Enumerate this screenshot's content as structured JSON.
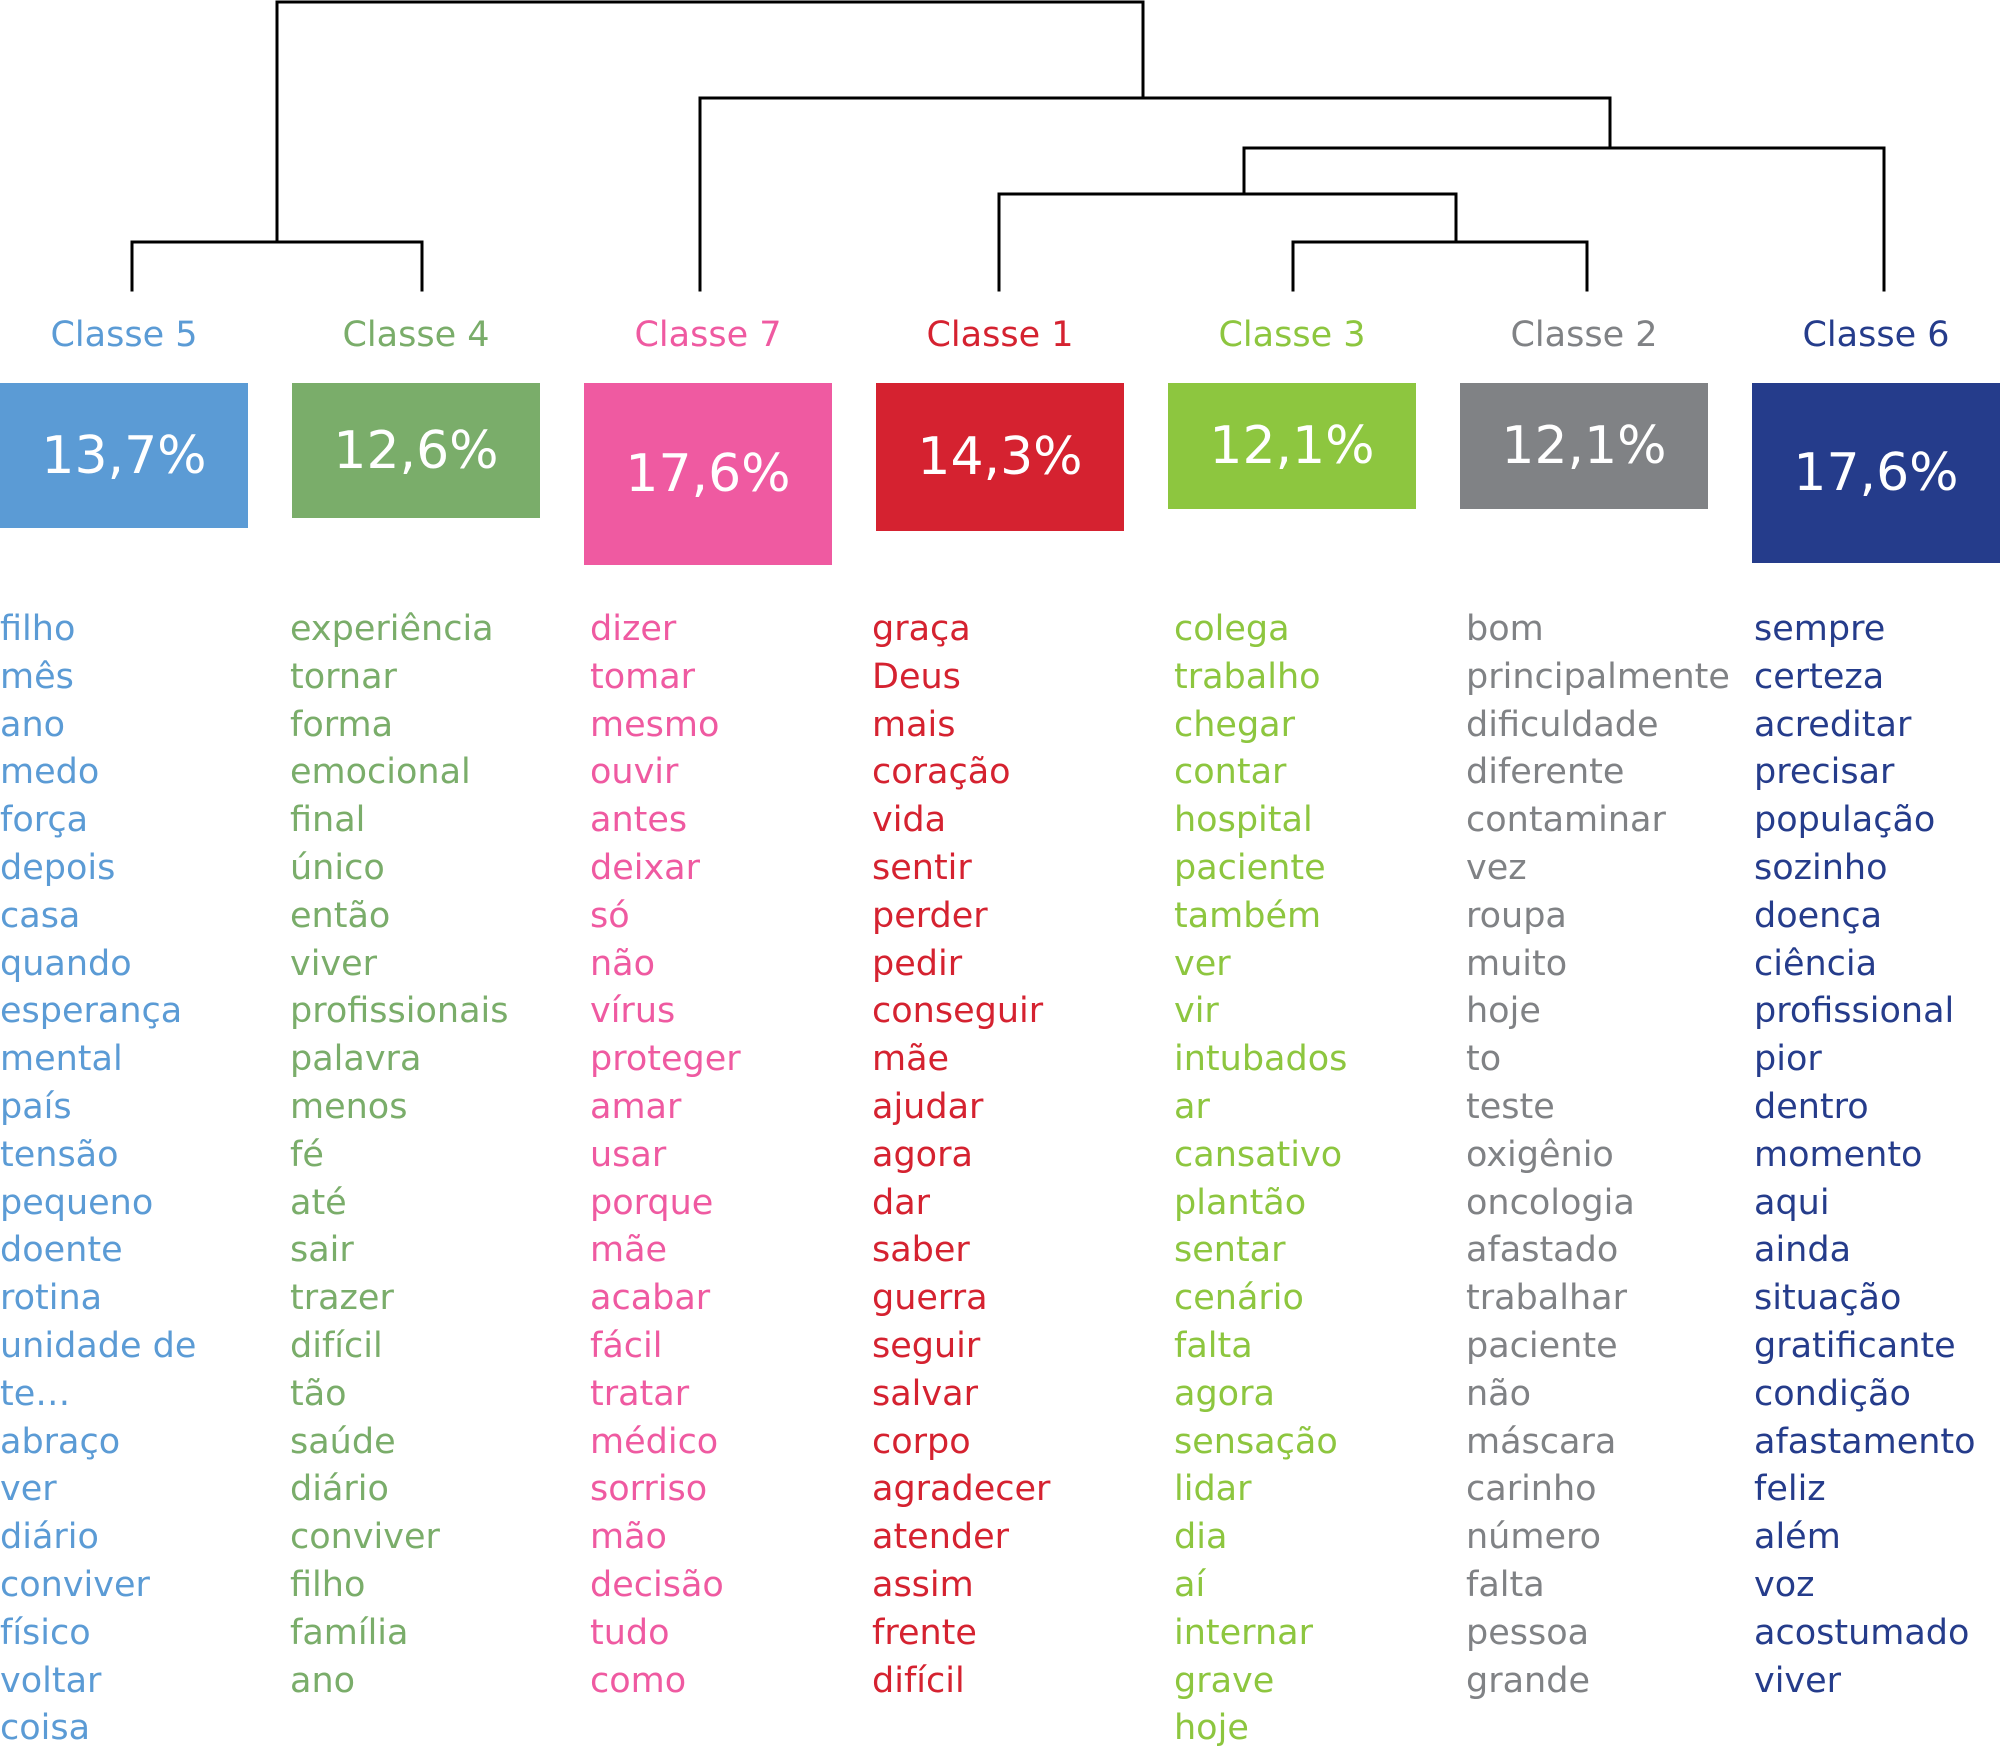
{
  "colors": {
    "classe5": "#5b9bd5",
    "classe4": "#7aad6a",
    "classe7": "#ef5aa1",
    "classe1": "#d52230",
    "classe3": "#8dc63f",
    "classe2": "#808285",
    "classe6": "#253c8b",
    "dendrogram": "#000000"
  },
  "classes": [
    {
      "key": "classe5",
      "label": "Classe 5",
      "percent": "13,7%",
      "words": [
        "filho",
        "mês",
        "ano",
        "medo",
        "força",
        "depois",
        "casa",
        "quando",
        "esperança",
        "mental",
        "país",
        "tensão",
        "pequeno",
        "doente",
        "rotina",
        "unidade de",
        "te…",
        "abraço",
        "ver",
        "diário",
        "conviver",
        "físico",
        "voltar",
        "coisa"
      ]
    },
    {
      "key": "classe4",
      "label": "Classe 4",
      "percent": "12,6%",
      "words": [
        "experiência",
        "tornar",
        "forma",
        "emocional",
        "final",
        "único",
        "então",
        "viver",
        "profissionais",
        "palavra",
        "menos",
        "fé",
        "até",
        "sair",
        "trazer",
        "difícil",
        "tão",
        "saúde",
        "diário",
        "conviver",
        "filho",
        "família",
        "ano"
      ]
    },
    {
      "key": "classe7",
      "label": "Classe 7",
      "percent": "17,6%",
      "words": [
        "dizer",
        "tomar",
        "mesmo",
        "ouvir",
        "antes",
        "deixar",
        "só",
        "não",
        "vírus",
        "proteger",
        "amar",
        "usar",
        "porque",
        "mãe",
        "acabar",
        "fácil",
        "tratar",
        "médico",
        "sorriso",
        "mão",
        "decisão",
        "tudo",
        "como"
      ]
    },
    {
      "key": "classe1",
      "label": "Classe 1",
      "percent": "14,3%",
      "words": [
        "graça",
        "Deus",
        "mais",
        "coração",
        "vida",
        "sentir",
        "perder",
        "pedir",
        "conseguir",
        "mãe",
        "ajudar",
        "agora",
        "dar",
        "saber",
        "guerra",
        "seguir",
        "salvar",
        "corpo",
        "agradecer",
        "atender",
        "assim",
        "frente",
        "difícil"
      ]
    },
    {
      "key": "classe3",
      "label": "Classe 3",
      "percent": "12,1%",
      "words": [
        "colega",
        "trabalho",
        "chegar",
        "contar",
        "hospital",
        "paciente",
        "também",
        "ver",
        "vir",
        "intubados",
        "ar",
        "cansativo",
        "plantão",
        "sentar",
        "cenário",
        "falta",
        "agora",
        "sensação",
        "lidar",
        "dia",
        "aí",
        "internar",
        "grave",
        "hoje"
      ]
    },
    {
      "key": "classe2",
      "label": "Classe 2",
      "percent": "12,1%",
      "words": [
        "bom",
        "principalmente",
        "dificuldade",
        "diferente",
        "contaminar",
        "vez",
        "roupa",
        "muito",
        "hoje",
        "to",
        "teste",
        "oxigênio",
        "oncologia",
        "afastado",
        "trabalhar",
        "paciente",
        "não",
        "máscara",
        "carinho",
        "número",
        "falta",
        "pessoa",
        "grande"
      ]
    },
    {
      "key": "classe6",
      "label": "Classe 6",
      "percent": "17,6%",
      "words": [
        "sempre",
        "certeza",
        "acreditar",
        "precisar",
        "população",
        "sozinho",
        "doença",
        "ciência",
        "profissional",
        "pior",
        "dentro",
        "momento",
        "aqui",
        "ainda",
        "situação",
        "gratificante",
        "condição",
        "afastamento",
        "feliz",
        "além",
        "voz",
        "acostumado",
        "viver"
      ]
    }
  ]
}
